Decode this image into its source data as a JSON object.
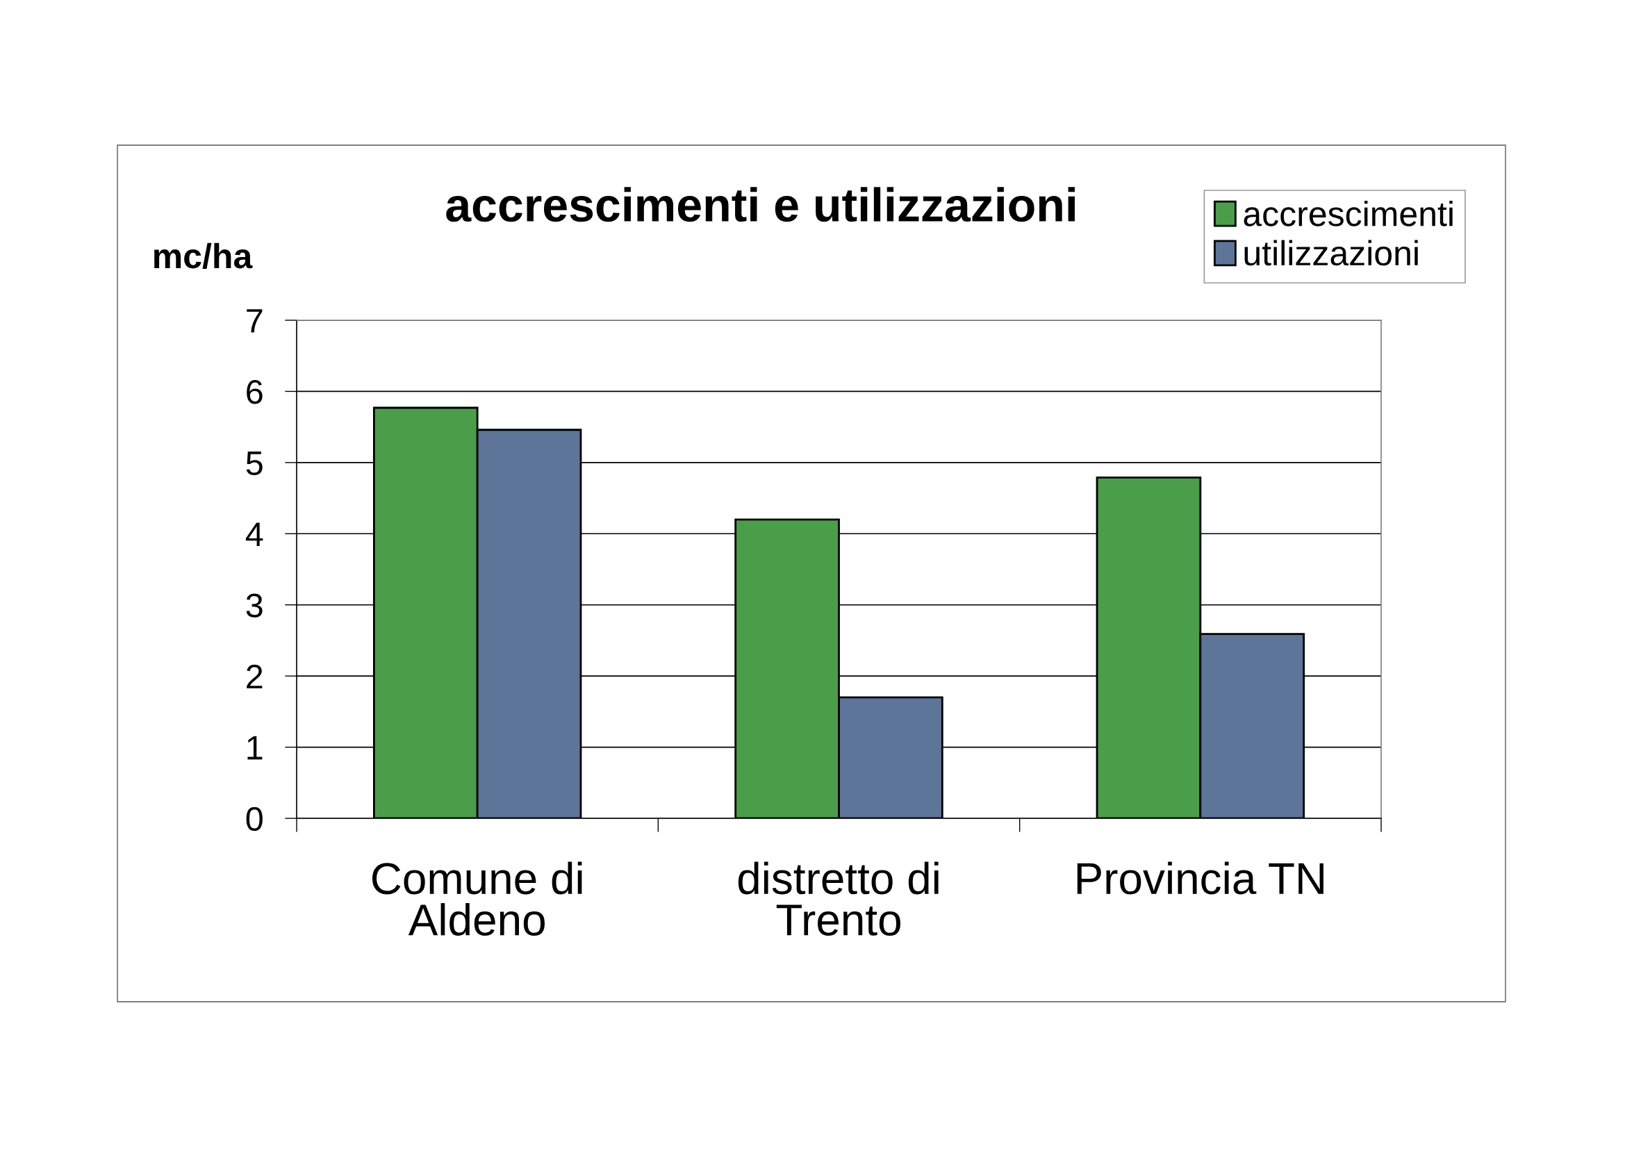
{
  "chart_data": {
    "type": "bar",
    "title": "accrescimenti e utilizzazioni",
    "ylabel": "mc/ha",
    "categories": [
      "Comune di\nAldeno",
      "distretto di\nTrento",
      "Provincia TN"
    ],
    "series": [
      {
        "name": "accrescimenti",
        "color": "#4a9e4a",
        "values": [
          5.77,
          4.2,
          4.79
        ]
      },
      {
        "name": "utilizzazioni",
        "color": "#5d7599",
        "values": [
          5.46,
          1.7,
          2.59
        ]
      }
    ],
    "ylim": [
      0,
      7
    ],
    "yticks": [
      0,
      1,
      2,
      3,
      4,
      5,
      6,
      7
    ],
    "grid": "y",
    "legend": "top right"
  }
}
